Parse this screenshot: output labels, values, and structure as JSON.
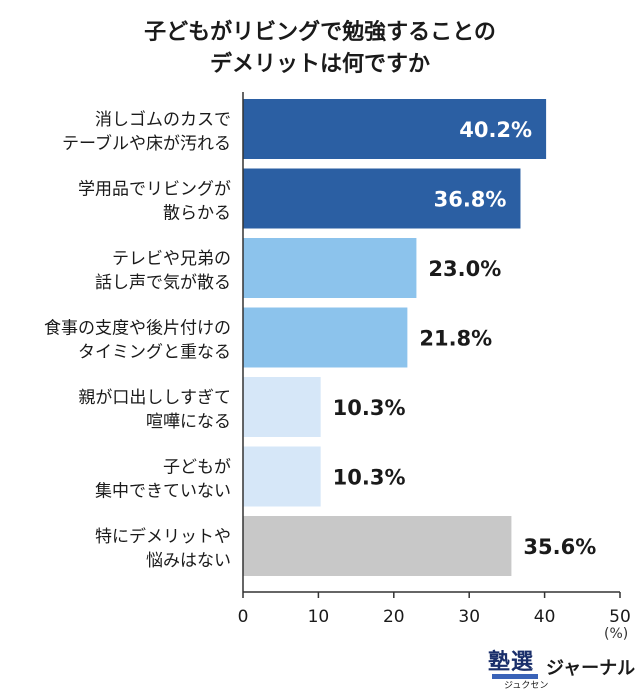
{
  "title_lines": [
    "子どもがリビングで勉強することの",
    "デメリットは何ですか"
  ],
  "chart_data": {
    "type": "bar",
    "orientation": "horizontal",
    "categories": [
      [
        "消しゴムのカスで",
        "テーブルや床が汚れる"
      ],
      [
        "学用品でリビングが",
        "散らかる"
      ],
      [
        "テレビや兄弟の",
        "話し声で気が散る"
      ],
      [
        "食事の支度や後片付けの",
        "タイミングと重なる"
      ],
      [
        "親が口出ししすぎて",
        "喧嘩になる"
      ],
      [
        "子どもが",
        "集中できていない"
      ],
      [
        "特にデメリットや",
        "悩みはない"
      ]
    ],
    "values": [
      40.2,
      36.8,
      23.0,
      21.8,
      10.3,
      10.3,
      35.6
    ],
    "value_labels": [
      "40.2%",
      "36.8%",
      "23.0%",
      "21.8%",
      "10.3%",
      "10.3%",
      "35.6%"
    ],
    "bar_colors": [
      "#2b5fa3",
      "#2b5fa3",
      "#8cc3ec",
      "#8cc3ec",
      "#d6e7f8",
      "#d6e7f8",
      "#c8c8c8"
    ],
    "label_inside": [
      true,
      true,
      false,
      false,
      false,
      false,
      false
    ],
    "xlim": [
      0,
      50
    ],
    "xticks": [
      "0",
      "10",
      "20",
      "30",
      "40",
      "50"
    ],
    "unit_label": "(%)",
    "grid": false
  },
  "logo": {
    "kanji": "塾選",
    "katakana": "ジャーナル",
    "ruby": "ジュクセン"
  }
}
